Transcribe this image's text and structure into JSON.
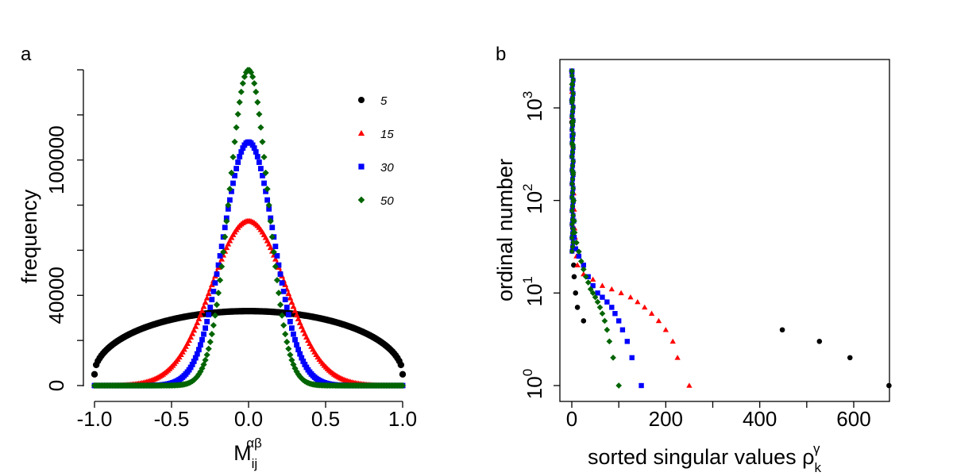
{
  "chart_data": [
    {
      "type": "scatter",
      "panel_label": "a",
      "xlabel_base": "M",
      "xlabel_sub": "ij",
      "xlabel_sup": "αβ",
      "ylabel": "frequency",
      "xlim": [
        -1.0,
        1.0
      ],
      "ylim": [
        0,
        140000
      ],
      "x_tick_labels": [
        "-1.0",
        "-0.5",
        "0.0",
        "0.5",
        "1.0"
      ],
      "x_tick_values": [
        -1.0,
        -0.5,
        0.0,
        0.5,
        1.0
      ],
      "y_tick_labels": [
        "0",
        "40000",
        "100000"
      ],
      "y_tick_values": [
        0,
        40000,
        100000
      ],
      "y_minor_ticks": [
        20000,
        60000,
        80000,
        120000,
        140000
      ],
      "legend": [
        {
          "label": "5",
          "color": "#000000",
          "marker": "circle"
        },
        {
          "label": "15",
          "color": "#ff0000",
          "marker": "triangle"
        },
        {
          "label": "30",
          "color": "#0000ff",
          "marker": "square"
        },
        {
          "label": "50",
          "color": "#006400",
          "marker": "diamond"
        }
      ],
      "series": [
        {
          "name": "5",
          "color": "#000000",
          "marker": "circle",
          "kind": "semicircle",
          "peak": 33000,
          "edge": 5000,
          "points": 180
        },
        {
          "name": "15",
          "color": "#ff0000",
          "marker": "triangle",
          "kind": "gaussian",
          "peak": 73000,
          "sigma": 0.24,
          "points": 190
        },
        {
          "name": "30",
          "color": "#0000ff",
          "marker": "square",
          "kind": "gaussian",
          "peak": 108000,
          "sigma": 0.165,
          "points": 190
        },
        {
          "name": "50",
          "color": "#006400",
          "marker": "diamond",
          "kind": "gaussian",
          "peak": 140000,
          "sigma": 0.125,
          "points": 190
        }
      ]
    },
    {
      "type": "scatter",
      "panel_label": "b",
      "xlabel_text": "sorted singular values ρ",
      "xlabel_sub": "k",
      "xlabel_sup": "γ",
      "ylabel": "ordinal number",
      "y_scale": "log",
      "xlim": [
        -20,
        700
      ],
      "ylim_log10": [
        -0.1,
        3.4
      ],
      "x_tick_labels": [
        "0",
        "200",
        "400",
        "600"
      ],
      "x_tick_values": [
        0,
        200,
        400,
        600
      ],
      "x_minor_ticks": [
        100,
        300,
        500,
        700
      ],
      "y_tick_base": "10",
      "y_tick_exponents": [
        "0",
        "1",
        "2",
        "3"
      ],
      "y_tick_values": [
        1,
        10,
        100,
        1000
      ],
      "series": [
        {
          "name": "5",
          "color": "#000000",
          "marker": "circle",
          "x": [
            675,
            592,
            527,
            448,
            25,
            12,
            8,
            5,
            4,
            3,
            2,
            1.5,
            1,
            0.5,
            0.2,
            0.1,
            0.05
          ],
          "y": [
            1,
            2,
            3,
            4,
            5,
            7,
            10,
            15,
            20,
            30,
            50,
            80,
            150,
            300,
            700,
            1200,
            2500
          ]
        },
        {
          "name": "15",
          "color": "#ff0000",
          "marker": "triangle",
          "x": [
            250,
            225,
            215,
            200,
            185,
            170,
            155,
            140,
            125,
            105,
            85,
            65,
            45,
            25,
            12,
            10,
            8,
            7,
            6,
            5,
            4,
            3,
            2,
            1,
            0.5,
            0.2
          ],
          "y": [
            1,
            2,
            3,
            4,
            5,
            6,
            7,
            8,
            9,
            10,
            11,
            12,
            14,
            16,
            20,
            25,
            30,
            40,
            50,
            80,
            120,
            200,
            400,
            800,
            1500,
            2500
          ]
        },
        {
          "name": "30",
          "color": "#0000ff",
          "marker": "square",
          "x": [
            148,
            128,
            118,
            108,
            100,
            92,
            85,
            75,
            65,
            55,
            45,
            35,
            25,
            15,
            8,
            5,
            4,
            3,
            2,
            1,
            0.5,
            0.2
          ],
          "y": [
            1,
            2,
            3,
            4,
            5,
            6,
            7,
            8,
            9,
            10,
            12,
            15,
            20,
            25,
            30,
            40,
            60,
            100,
            200,
            500,
            1200,
            2500
          ]
        },
        {
          "name": "50",
          "color": "#006400",
          "marker": "diamond",
          "x": [
            100,
            88,
            80,
            75,
            70,
            65,
            60,
            55,
            50,
            45,
            40,
            35,
            30,
            25,
            20,
            15,
            10,
            6,
            5,
            4,
            3,
            2,
            1.5,
            1,
            0.5,
            0.2
          ],
          "y": [
            1,
            2,
            3,
            4,
            5,
            6,
            7,
            8,
            9,
            10,
            11,
            13,
            15,
            18,
            22,
            28,
            35,
            45,
            60,
            100,
            200,
            400,
            700,
            1200,
            1800,
            2500
          ]
        }
      ]
    }
  ]
}
